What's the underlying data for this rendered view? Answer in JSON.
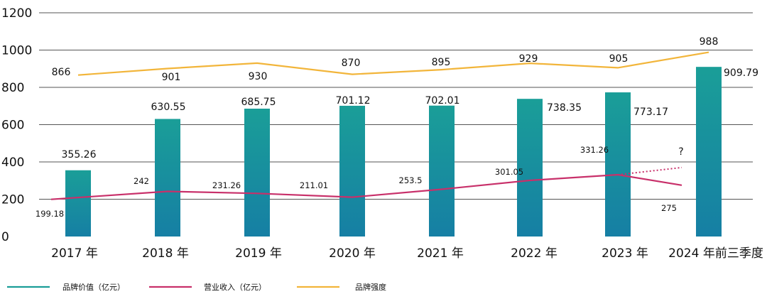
{
  "chart_data": {
    "type": "bar",
    "categories": [
      "2017 年",
      "2018 年",
      "2019 年",
      "2020 年",
      "2021 年",
      "2022 年",
      "2023 年",
      "2024 年前三季度"
    ],
    "ylim": [
      0,
      1200
    ],
    "yticks": [
      "0",
      "200",
      "400",
      "600",
      "800",
      "1000",
      "1200"
    ],
    "grid": true,
    "legend_position": "bottom-left",
    "series": [
      {
        "name": "品牌价值（亿元）",
        "type": "bar",
        "color": "#1a9e98",
        "color_bottom": "#167fa4",
        "values": [
          355.26,
          630.55,
          685.75,
          701.12,
          702.01,
          738.35,
          773.17,
          909.79
        ],
        "labels": [
          "355.26",
          "630.55",
          "685.75",
          "701.12",
          "702.01",
          "738.35",
          "773.17",
          "909.79"
        ]
      },
      {
        "name": "营业收入（亿元）",
        "type": "line",
        "color": "#c8306a",
        "values": [
          199.18,
          242,
          231.26,
          211.01,
          253.5,
          301.05,
          331.26,
          275
        ],
        "labels": [
          "199.18",
          "242",
          "231.26",
          "211.01",
          "253.5",
          "301.05",
          "331.26",
          "275"
        ],
        "dotted_projection": "?"
      },
      {
        "name": "品牌强度",
        "type": "line",
        "color": "#f2b53a",
        "values": [
          866,
          901,
          930,
          870,
          895,
          929,
          905,
          988
        ],
        "labels": [
          "866",
          "901",
          "930",
          "870",
          "895",
          "929",
          "905",
          "988"
        ]
      }
    ]
  }
}
